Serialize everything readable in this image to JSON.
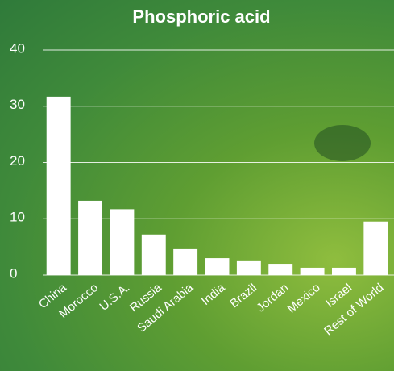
{
  "chart_data": {
    "type": "bar",
    "title": "Phosphoric acid",
    "categories": [
      "China",
      "Morocco",
      "U.S.A.",
      "Russia",
      "Saudi Arabia",
      "India",
      "Brazil",
      "Jordan",
      "Mexico",
      "Israel",
      "Rest of World"
    ],
    "values": [
      31.7,
      13.2,
      11.7,
      7.2,
      4.6,
      3.0,
      2.6,
      2.0,
      1.3,
      1.3,
      9.5
    ],
    "color": "#ffffff",
    "ylim": [
      0,
      40
    ],
    "yticks": [
      0,
      10,
      20,
      30,
      40
    ],
    "grid": true
  }
}
